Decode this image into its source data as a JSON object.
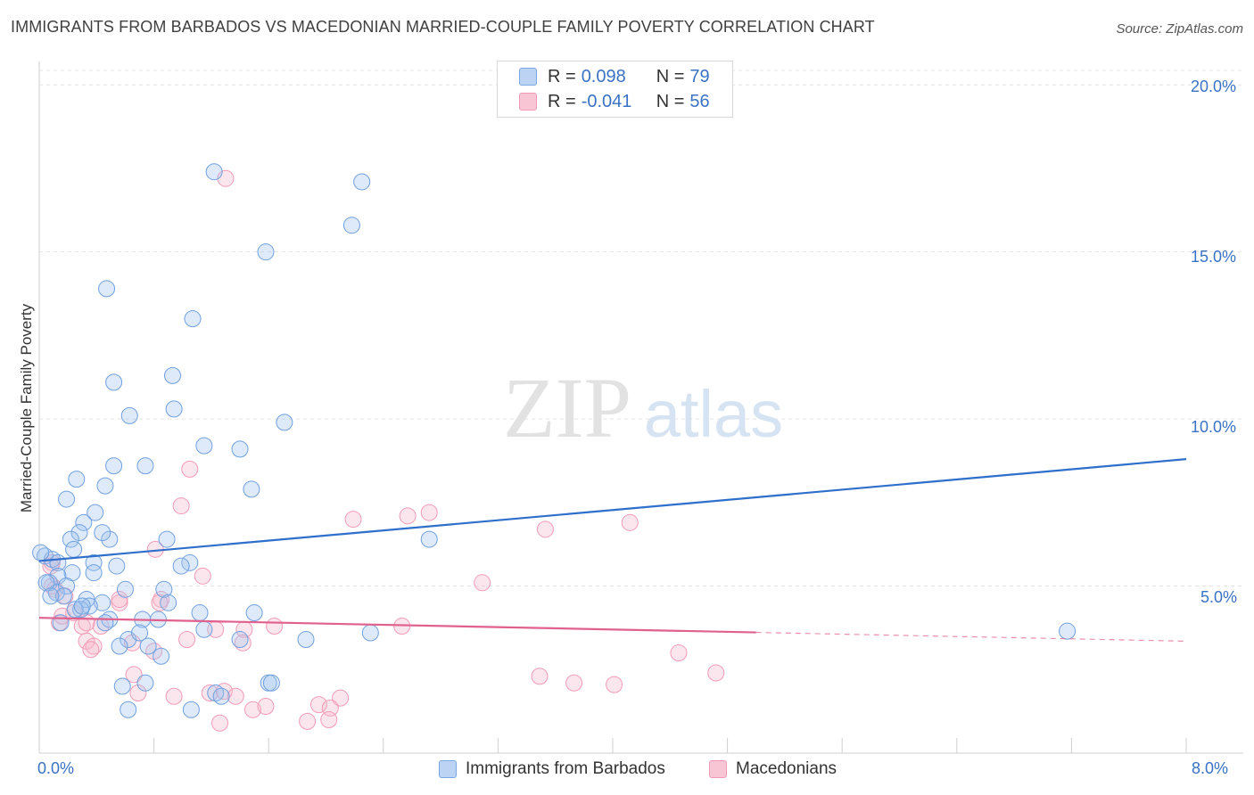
{
  "title": "IMMIGRANTS FROM BARBADOS VS MACEDONIAN MARRIED-COUPLE FAMILY POVERTY CORRELATION CHART",
  "source": "Source: ZipAtlas.com",
  "watermark": {
    "zip": "ZIP",
    "atlas": "atlas"
  },
  "legend": {
    "rows": [
      {
        "r_label": "R =",
        "r_value": "0.098",
        "n_label": "N =",
        "n_value": "79"
      },
      {
        "r_label": "R =",
        "r_value": "-0.041",
        "n_label": "N =",
        "n_value": "56"
      }
    ]
  },
  "bottom_legend": [
    "Immigrants from Barbados",
    "Macedonians"
  ],
  "chart_data": {
    "type": "scatter",
    "title": "IMMIGRANTS FROM BARBADOS VS MACEDONIAN MARRIED-COUPLE FAMILY POVERTY CORRELATION CHART",
    "xlabel": "",
    "ylabel": "Married-Couple Family Poverty",
    "xlim": [
      0,
      8
    ],
    "ylim": [
      0,
      20.7
    ],
    "x_tick_labels": [
      "0.0%",
      "8.0%"
    ],
    "y_ticks": [
      5,
      10,
      15,
      20
    ],
    "y_tick_labels": [
      "5.0%",
      "10.0%",
      "15.0%",
      "20.0%"
    ],
    "grid": true,
    "legend_position": "top-center",
    "colors": {
      "barbados": "#6fa0e0",
      "macedonians": "#f29bb6",
      "barbados_line": "#2f6fcc",
      "macedonians_line": "#e0608e"
    },
    "series": [
      {
        "name": "Immigrants from Barbados",
        "r": 0.098,
        "n": 79,
        "trend": {
          "x": [
            0,
            8
          ],
          "y": [
            5.75,
            8.8
          ],
          "dashed_from": null
        },
        "points": [
          [
            1.22,
            17.4
          ],
          [
            2.25,
            17.1
          ],
          [
            2.18,
            15.8
          ],
          [
            1.58,
            15.0
          ],
          [
            0.47,
            13.9
          ],
          [
            1.07,
            13.0
          ],
          [
            0.93,
            11.3
          ],
          [
            0.52,
            11.1
          ],
          [
            0.63,
            10.1
          ],
          [
            0.94,
            10.3
          ],
          [
            1.71,
            9.9
          ],
          [
            1.15,
            9.2
          ],
          [
            1.4,
            9.1
          ],
          [
            0.52,
            8.6
          ],
          [
            0.74,
            8.6
          ],
          [
            0.26,
            8.2
          ],
          [
            0.46,
            8.0
          ],
          [
            1.48,
            7.9
          ],
          [
            0.19,
            7.6
          ],
          [
            0.39,
            7.2
          ],
          [
            0.31,
            6.9
          ],
          [
            0.28,
            6.6
          ],
          [
            0.22,
            6.4
          ],
          [
            0.49,
            6.4
          ],
          [
            0.89,
            6.4
          ],
          [
            2.72,
            6.4
          ],
          [
            0.24,
            6.1
          ],
          [
            0.04,
            5.9
          ],
          [
            0.09,
            5.8
          ],
          [
            0.13,
            5.7
          ],
          [
            0.38,
            5.7
          ],
          [
            0.54,
            5.6
          ],
          [
            1.05,
            5.7
          ],
          [
            0.99,
            5.6
          ],
          [
            0.23,
            5.4
          ],
          [
            0.38,
            5.4
          ],
          [
            0.13,
            5.3
          ],
          [
            0.07,
            5.1
          ],
          [
            0.19,
            5.0
          ],
          [
            0.6,
            4.9
          ],
          [
            0.87,
            4.9
          ],
          [
            0.12,
            4.8
          ],
          [
            0.17,
            4.7
          ],
          [
            0.33,
            4.6
          ],
          [
            0.44,
            4.5
          ],
          [
            0.9,
            4.5
          ],
          [
            0.35,
            4.4
          ],
          [
            0.29,
            4.3
          ],
          [
            0.25,
            4.3
          ],
          [
            1.12,
            4.2
          ],
          [
            1.5,
            4.2
          ],
          [
            0.49,
            4.0
          ],
          [
            0.15,
            3.9
          ],
          [
            0.46,
            3.9
          ],
          [
            0.72,
            4.0
          ],
          [
            0.83,
            4.0
          ],
          [
            0.62,
            3.4
          ],
          [
            1.15,
            3.7
          ],
          [
            0.7,
            3.6
          ],
          [
            0.56,
            3.2
          ],
          [
            0.76,
            3.2
          ],
          [
            1.4,
            3.4
          ],
          [
            1.86,
            3.4
          ],
          [
            2.31,
            3.6
          ],
          [
            7.17,
            3.65
          ],
          [
            0.85,
            2.9
          ],
          [
            0.58,
            2.0
          ],
          [
            0.74,
            2.1
          ],
          [
            1.23,
            1.8
          ],
          [
            1.27,
            1.7
          ],
          [
            1.6,
            2.1
          ],
          [
            1.62,
            2.1
          ],
          [
            0.62,
            1.3
          ],
          [
            1.06,
            1.3
          ],
          [
            0.01,
            6.0
          ],
          [
            0.05,
            5.1
          ],
          [
            0.08,
            4.7
          ],
          [
            0.3,
            4.4
          ],
          [
            0.44,
            6.6
          ]
        ]
      },
      {
        "name": "Macedonians",
        "r": -0.041,
        "n": 56,
        "trend": {
          "x": [
            0,
            8
          ],
          "y": [
            4.05,
            3.35
          ],
          "dashed_from": 5.0
        },
        "points": [
          [
            1.3,
            17.2
          ],
          [
            1.05,
            8.5
          ],
          [
            0.99,
            7.4
          ],
          [
            2.19,
            7.0
          ],
          [
            2.57,
            7.1
          ],
          [
            2.72,
            7.2
          ],
          [
            3.53,
            6.7
          ],
          [
            4.12,
            6.9
          ],
          [
            0.81,
            6.1
          ],
          [
            0.09,
            5.7
          ],
          [
            0.08,
            5.6
          ],
          [
            1.14,
            5.3
          ],
          [
            3.09,
            5.1
          ],
          [
            0.09,
            5.0
          ],
          [
            0.11,
            4.9
          ],
          [
            0.18,
            4.7
          ],
          [
            0.85,
            4.6
          ],
          [
            0.56,
            4.5
          ],
          [
            0.84,
            4.5
          ],
          [
            0.24,
            4.2
          ],
          [
            0.14,
            3.9
          ],
          [
            0.3,
            3.8
          ],
          [
            0.43,
            3.8
          ],
          [
            0.56,
            4.6
          ],
          [
            1.23,
            3.7
          ],
          [
            1.43,
            3.7
          ],
          [
            1.64,
            3.8
          ],
          [
            2.53,
            3.8
          ],
          [
            1.03,
            3.4
          ],
          [
            0.33,
            3.35
          ],
          [
            0.38,
            3.2
          ],
          [
            0.65,
            3.3
          ],
          [
            1.42,
            3.3
          ],
          [
            0.36,
            3.1
          ],
          [
            0.8,
            3.05
          ],
          [
            4.46,
            3.0
          ],
          [
            4.72,
            2.4
          ],
          [
            0.66,
            2.35
          ],
          [
            3.49,
            2.3
          ],
          [
            3.73,
            2.1
          ],
          [
            4.01,
            2.05
          ],
          [
            0.69,
            1.8
          ],
          [
            0.94,
            1.7
          ],
          [
            1.19,
            1.8
          ],
          [
            1.29,
            1.85
          ],
          [
            1.37,
            1.7
          ],
          [
            2.1,
            1.65
          ],
          [
            1.49,
            1.3
          ],
          [
            1.58,
            1.4
          ],
          [
            1.95,
            1.45
          ],
          [
            2.03,
            1.35
          ],
          [
            1.87,
            0.95
          ],
          [
            2.02,
            1.0
          ],
          [
            1.26,
            0.9
          ],
          [
            0.16,
            4.1
          ],
          [
            0.33,
            3.9
          ]
        ]
      }
    ]
  }
}
